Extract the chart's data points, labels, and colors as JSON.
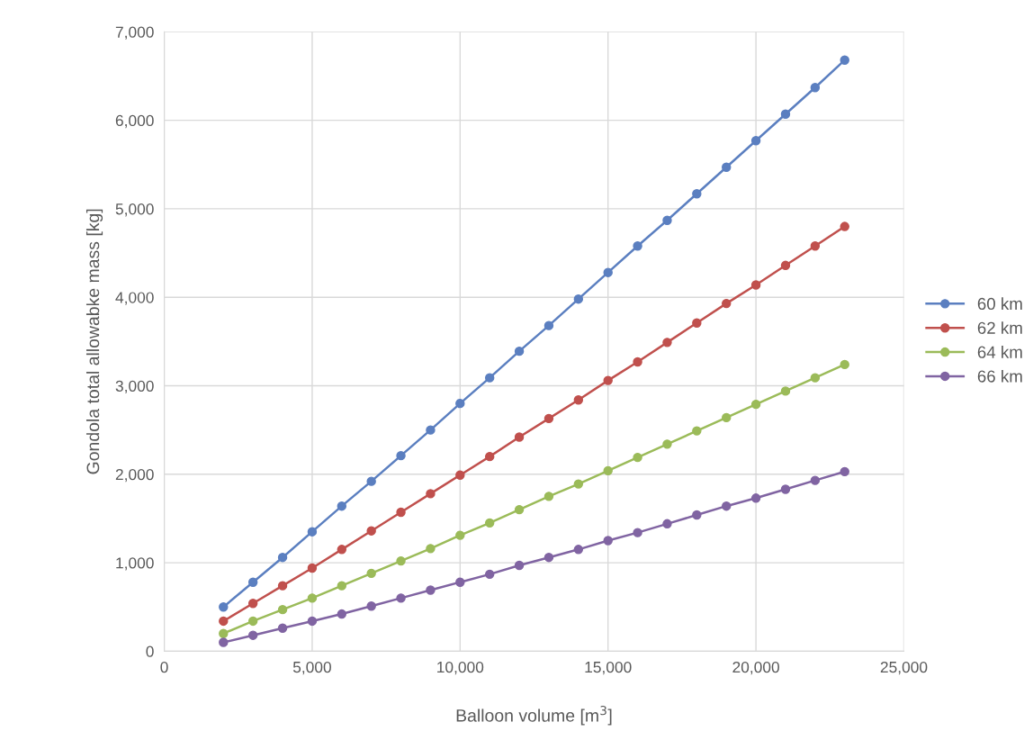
{
  "chart_data": {
    "type": "line",
    "xlabel": "Balloon volume [m$^{3}$]",
    "ylabel": "Gondola total allowabke mass [kg]",
    "x": [
      2000,
      3000,
      4000,
      5000,
      6000,
      7000,
      8000,
      9000,
      10000,
      11000,
      12000,
      13000,
      14000,
      15000,
      16000,
      17000,
      18000,
      19000,
      20000,
      21000,
      22000,
      23000
    ],
    "series": [
      {
        "name": "60 km",
        "color": "#5b7fc0",
        "values": [
          500,
          780,
          1060,
          1350,
          1640,
          1920,
          2210,
          2500,
          2800,
          3090,
          3390,
          3680,
          3980,
          4280,
          4580,
          4870,
          5170,
          5470,
          5770,
          6070,
          6370,
          6680
        ]
      },
      {
        "name": "62 km",
        "color": "#c0504d",
        "values": [
          340,
          540,
          740,
          940,
          1150,
          1360,
          1570,
          1780,
          1990,
          2200,
          2420,
          2630,
          2840,
          3060,
          3270,
          3490,
          3710,
          3930,
          4140,
          4360,
          4580,
          4800
        ]
      },
      {
        "name": "64 km",
        "color": "#9bbb59",
        "values": [
          200,
          340,
          470,
          600,
          740,
          880,
          1020,
          1160,
          1310,
          1450,
          1600,
          1750,
          1890,
          2040,
          2190,
          2340,
          2490,
          2640,
          2790,
          2940,
          3090,
          3240
        ]
      },
      {
        "name": "66 km",
        "color": "#8064a2",
        "values": [
          100,
          180,
          260,
          340,
          420,
          510,
          600,
          690,
          780,
          870,
          970,
          1060,
          1150,
          1250,
          1340,
          1440,
          1540,
          1640,
          1730,
          1830,
          1930,
          2030
        ]
      }
    ],
    "xlim": [
      0,
      25000
    ],
    "xticks": [
      0,
      {
        "value": 5000,
        "label": "5,000"
      },
      {
        "value": 10000,
        "label": "10,000"
      },
      {
        "value": 15000,
        "label": "15,000"
      },
      {
        "value": 20000,
        "label": "20,000"
      },
      {
        "value": 25000,
        "label": "25,000"
      }
    ],
    "ylim": [
      0,
      7000
    ],
    "yticks": [
      0,
      {
        "value": 1000,
        "label": "1,000"
      },
      {
        "value": 2000,
        "label": "2,000"
      },
      {
        "value": 3000,
        "label": "3,000"
      },
      {
        "value": 4000,
        "label": "4,000"
      },
      {
        "value": 5000,
        "label": "5,000"
      },
      {
        "value": 6000,
        "label": "6,000"
      },
      {
        "value": 7000,
        "label": "7,000"
      }
    ],
    "grid": true,
    "legend": "right",
    "marker": "circle",
    "line_style": "solid"
  }
}
